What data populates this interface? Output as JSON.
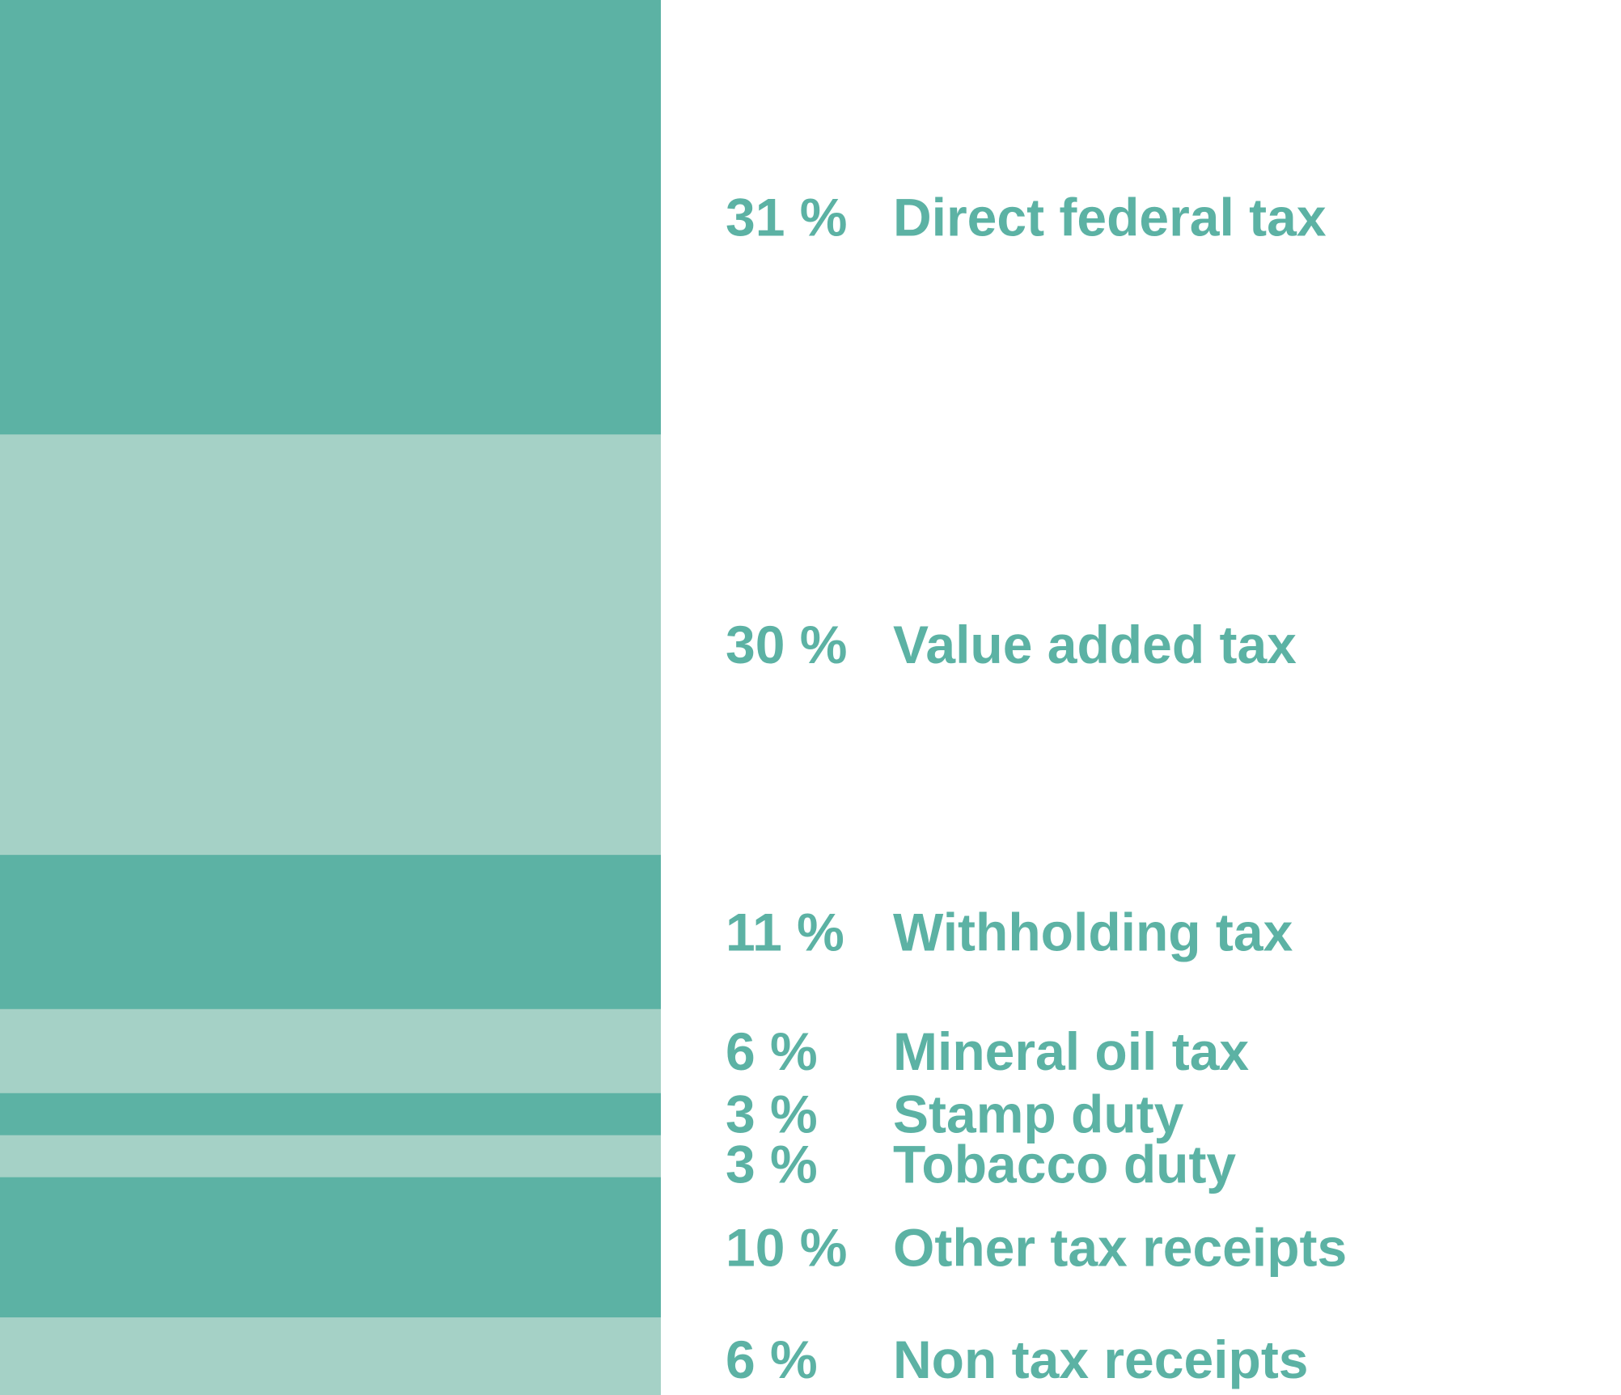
{
  "chart_data": {
    "type": "bar",
    "orientation": "stacked-vertical",
    "unit": "%",
    "categories": [
      "Direct federal tax",
      "Value added tax",
      "Withholding tax",
      "Mineral oil tax",
      "Stamp duty",
      "Tobacco duty",
      "Other tax receipts",
      "Non tax receipts"
    ],
    "values": [
      31,
      30,
      11,
      6,
      3,
      3,
      10,
      6
    ],
    "value_labels": [
      "31 %",
      "30 %",
      "11 %",
      "6 %",
      "3 %",
      "3 %",
      "10 %",
      "6 %"
    ],
    "title": "",
    "xlabel": "",
    "ylabel": "",
    "ylim": [
      0,
      100
    ],
    "grid": false,
    "legend": "right",
    "colors": {
      "dark": "#5cb2a4",
      "light": "#a5d1c6",
      "text": "#5cb2a4",
      "background": "#ffffff"
    }
  }
}
